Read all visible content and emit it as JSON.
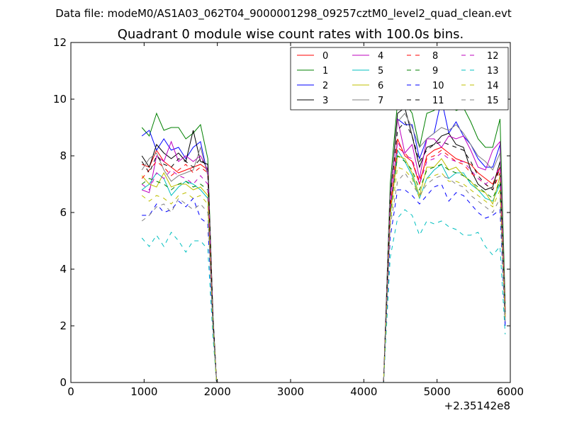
{
  "figure": {
    "suptitle": "Data file: modeM0/AS1A03_062T04_9000001298_09257cztM0_level2_quad_clean.evt"
  },
  "chart_data": {
    "type": "line",
    "title": "Quadrant 0 module wise count rates with 100.0s bins.",
    "xlabel": "",
    "ylabel": "",
    "xlim": [
      0,
      6000
    ],
    "ylim": [
      0,
      12
    ],
    "x_offset_label": "+2.35142e8",
    "xticks": [
      0,
      1000,
      2000,
      3000,
      4000,
      5000,
      6000
    ],
    "xtick_labels": [
      "0",
      "1000",
      "2000",
      "3000",
      "4000",
      "5000",
      "6000"
    ],
    "yticks": [
      0,
      2,
      4,
      6,
      8,
      10,
      12
    ],
    "ytick_labels": [
      "0",
      "2",
      "4",
      "6",
      "8",
      "10",
      "12"
    ],
    "grid": false,
    "legend": {
      "position": "top-right",
      "columns": 4
    },
    "x": [
      970,
      1070,
      1170,
      1270,
      1370,
      1470,
      1570,
      1670,
      1770,
      1870,
      1940,
      1990,
      2050,
      2500,
      3000,
      3500,
      4000,
      4270,
      4360,
      4460,
      4560,
      4660,
      4760,
      4860,
      4960,
      5060,
      5160,
      5260,
      5360,
      5460,
      5560,
      5660,
      5760,
      5860,
      5930
    ],
    "series": [
      {
        "name": "0",
        "color": "#ff0000",
        "style": "solid",
        "values": [
          7.7,
          7.6,
          8.2,
          7.8,
          7.6,
          7.4,
          7.5,
          7.6,
          7.7,
          7.5,
          2.2,
          0,
          0,
          0,
          0,
          0,
          0,
          0,
          6.0,
          8.6,
          8.0,
          7.8,
          7.0,
          8.0,
          8.2,
          8.3,
          8.1,
          7.9,
          7.8,
          7.7,
          7.4,
          7.2,
          7.0,
          7.6,
          2.6
        ]
      },
      {
        "name": "1",
        "color": "#008000",
        "style": "solid",
        "values": [
          9.0,
          8.7,
          9.5,
          8.9,
          9.0,
          9.0,
          8.6,
          8.8,
          9.1,
          7.9,
          2.4,
          0,
          0,
          0,
          0,
          0,
          0,
          0,
          7.0,
          9.9,
          9.9,
          9.5,
          8.3,
          9.5,
          9.6,
          10.1,
          10.0,
          9.6,
          9.7,
          9.2,
          8.6,
          8.3,
          8.3,
          9.3,
          2.8
        ]
      },
      {
        "name": "2",
        "color": "#0000ff",
        "style": "solid",
        "values": [
          8.7,
          8.9,
          8.2,
          8.6,
          8.2,
          8.3,
          7.9,
          8.3,
          8.5,
          7.3,
          2.3,
          0,
          0,
          0,
          0,
          0,
          0,
          0,
          6.6,
          9.3,
          9.1,
          9.1,
          7.9,
          8.6,
          8.8,
          10.0,
          8.8,
          9.2,
          8.7,
          8.4,
          7.9,
          7.6,
          7.6,
          8.4,
          2.0
        ]
      },
      {
        "name": "3",
        "color": "#000000",
        "style": "solid",
        "values": [
          8.0,
          7.6,
          8.4,
          8.1,
          7.9,
          8.1,
          7.8,
          8.9,
          7.8,
          7.7,
          2.3,
          0,
          0,
          0,
          0,
          0,
          0,
          0,
          6.6,
          9.5,
          9.7,
          8.7,
          7.6,
          8.3,
          8.4,
          8.7,
          8.8,
          8.4,
          8.3,
          7.5,
          7.0,
          6.8,
          6.9,
          7.8,
          2.5
        ]
      },
      {
        "name": "4",
        "color": "#bf00bf",
        "style": "solid",
        "values": [
          6.8,
          6.7,
          8.0,
          7.8,
          8.5,
          7.8,
          8.0,
          7.8,
          8.0,
          7.5,
          2.2,
          0,
          0,
          0,
          0,
          0,
          0,
          0,
          6.4,
          9.3,
          8.1,
          8.4,
          7.2,
          8.6,
          8.6,
          8.3,
          8.7,
          8.6,
          8.7,
          8.2,
          7.6,
          7.5,
          8.2,
          8.5,
          2.4
        ]
      },
      {
        "name": "5",
        "color": "#00bfbf",
        "style": "solid",
        "values": [
          6.8,
          7.0,
          7.4,
          7.2,
          6.6,
          6.9,
          7.1,
          7.0,
          6.8,
          6.5,
          2.0,
          0,
          0,
          0,
          0,
          0,
          0,
          0,
          5.8,
          8.2,
          7.8,
          7.3,
          6.5,
          7.2,
          7.5,
          7.7,
          7.2,
          7.4,
          7.4,
          7.0,
          6.8,
          6.5,
          6.4,
          7.0,
          2.2
        ]
      },
      {
        "name": "6",
        "color": "#bfbf00",
        "style": "solid",
        "values": [
          7.3,
          7.0,
          6.9,
          7.4,
          6.9,
          7.0,
          7.0,
          6.8,
          6.9,
          6.6,
          2.0,
          0,
          0,
          0,
          0,
          0,
          0,
          0,
          5.9,
          8.0,
          7.9,
          7.4,
          6.6,
          7.6,
          7.6,
          7.9,
          7.5,
          7.6,
          7.3,
          7.1,
          6.8,
          6.7,
          6.3,
          7.3,
          2.3
        ]
      },
      {
        "name": "7",
        "color": "#808080",
        "style": "solid",
        "values": [
          7.5,
          7.9,
          8.1,
          7.5,
          7.1,
          7.3,
          7.4,
          7.5,
          8.3,
          7.3,
          2.3,
          0,
          0,
          0,
          0,
          0,
          0,
          0,
          6.8,
          9.2,
          9.5,
          9.0,
          8.3,
          8.6,
          8.8,
          9.0,
          8.9,
          9.1,
          8.8,
          8.4,
          8.0,
          7.8,
          7.5,
          8.1,
          2.6
        ]
      },
      {
        "name": "8",
        "color": "#ff0000",
        "style": "dashed",
        "values": [
          7.2,
          7.5,
          7.8,
          7.6,
          7.3,
          7.5,
          7.7,
          7.4,
          7.6,
          7.4,
          2.2,
          0,
          0,
          0,
          0,
          0,
          0,
          0,
          6.2,
          8.3,
          8.1,
          7.8,
          7.1,
          7.9,
          8.0,
          8.2,
          8.0,
          7.8,
          7.7,
          7.4,
          7.2,
          7.0,
          6.8,
          7.4,
          2.5
        ]
      },
      {
        "name": "9",
        "color": "#008000",
        "style": "dashed",
        "values": [
          7.0,
          7.2,
          7.1,
          7.0,
          6.8,
          7.0,
          7.1,
          6.9,
          7.0,
          6.8,
          2.1,
          0,
          0,
          0,
          0,
          0,
          0,
          0,
          6.0,
          8.0,
          7.8,
          7.5,
          6.8,
          7.5,
          7.6,
          7.7,
          7.5,
          7.4,
          7.3,
          7.1,
          6.9,
          6.7,
          6.5,
          7.1,
          2.4
        ]
      },
      {
        "name": "10",
        "color": "#0000ff",
        "style": "dashed",
        "values": [
          5.9,
          5.9,
          6.3,
          6.0,
          6.1,
          6.4,
          6.2,
          6.5,
          5.8,
          5.6,
          1.9,
          0,
          0,
          0,
          0,
          0,
          0,
          0,
          5.1,
          6.8,
          6.8,
          6.6,
          6.3,
          6.6,
          6.9,
          7.0,
          6.4,
          6.7,
          6.6,
          6.3,
          6.0,
          5.8,
          5.9,
          6.1,
          2.0
        ]
      },
      {
        "name": "11",
        "color": "#000000",
        "style": "dashed",
        "values": [
          7.8,
          7.4,
          8.0,
          7.7,
          7.6,
          7.9,
          7.8,
          7.6,
          7.9,
          7.6,
          2.3,
          0,
          0,
          0,
          0,
          0,
          0,
          0,
          6.5,
          8.9,
          9.2,
          8.7,
          7.8,
          8.2,
          8.4,
          8.5,
          8.4,
          8.3,
          8.2,
          7.8,
          7.3,
          7.0,
          6.8,
          7.6,
          2.5
        ]
      },
      {
        "name": "12",
        "color": "#bf00bf",
        "style": "dashed",
        "values": [
          7.0,
          6.8,
          7.4,
          7.2,
          7.5,
          7.3,
          7.2,
          7.0,
          7.3,
          7.0,
          2.1,
          0,
          0,
          0,
          0,
          0,
          0,
          0,
          6.1,
          8.5,
          8.0,
          7.9,
          7.0,
          7.8,
          7.9,
          8.1,
          7.9,
          7.8,
          7.8,
          7.5,
          7.2,
          7.0,
          7.2,
          7.6,
          2.3
        ]
      },
      {
        "name": "13",
        "color": "#00bfbf",
        "style": "dashed",
        "values": [
          5.1,
          4.8,
          5.2,
          4.8,
          5.3,
          5.0,
          4.6,
          5.0,
          5.0,
          4.7,
          1.6,
          0,
          0,
          0,
          0,
          0,
          0,
          0,
          4.4,
          5.8,
          6.1,
          5.9,
          5.2,
          5.7,
          5.6,
          5.7,
          5.5,
          5.4,
          5.2,
          5.2,
          5.3,
          4.8,
          4.5,
          4.8,
          1.7
        ]
      },
      {
        "name": "14",
        "color": "#bfbf00",
        "style": "dashed",
        "values": [
          6.6,
          6.4,
          6.6,
          6.5,
          6.3,
          6.6,
          6.7,
          6.5,
          6.6,
          6.3,
          2.0,
          0,
          0,
          0,
          0,
          0,
          0,
          0,
          5.6,
          7.6,
          7.5,
          7.2,
          6.5,
          7.2,
          7.3,
          7.4,
          7.1,
          7.1,
          7.0,
          6.8,
          6.6,
          6.4,
          6.2,
          6.8,
          2.2
        ]
      },
      {
        "name": "15",
        "color": "#808080",
        "style": "dashed",
        "values": [
          5.7,
          5.9,
          6.2,
          6.3,
          6.0,
          6.5,
          6.3,
          6.1,
          6.3,
          6.0,
          1.9,
          0,
          0,
          0,
          0,
          0,
          0,
          0,
          5.5,
          7.1,
          7.4,
          7.0,
          6.6,
          7.0,
          7.2,
          7.3,
          7.2,
          7.0,
          6.9,
          6.6,
          6.4,
          6.2,
          6.0,
          6.5,
          2.1
        ]
      }
    ]
  }
}
